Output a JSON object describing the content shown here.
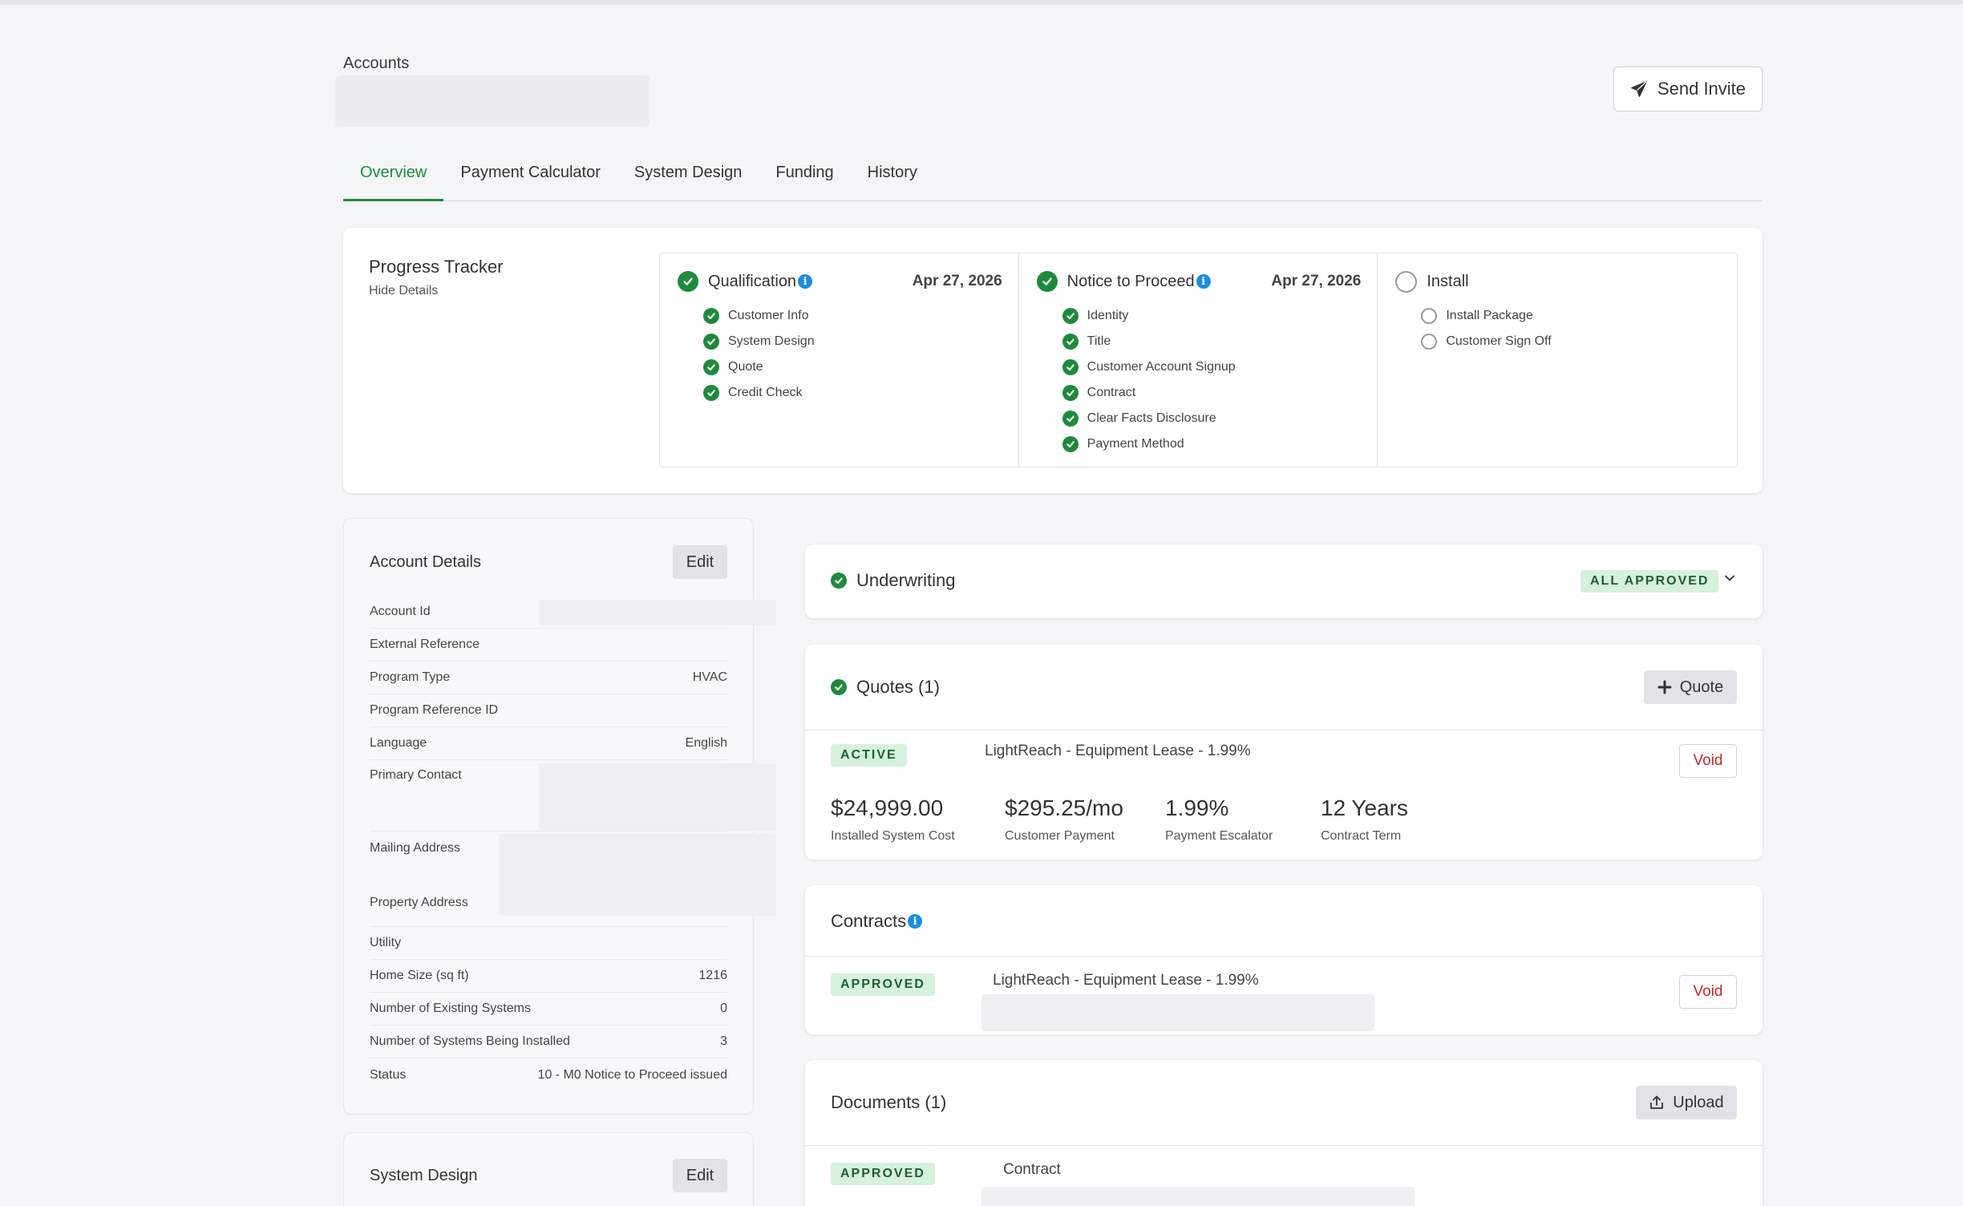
{
  "header": {
    "breadcrumb": "Accounts",
    "send_invite_label": "Send Invite"
  },
  "tabs": [
    {
      "label": "Overview",
      "active": true
    },
    {
      "label": "Payment Calculator",
      "active": false
    },
    {
      "label": "System Design",
      "active": false
    },
    {
      "label": "Funding",
      "active": false
    },
    {
      "label": "History",
      "active": false
    }
  ],
  "progress_tracker": {
    "title": "Progress Tracker",
    "toggle_label": "Hide Details",
    "stages": [
      {
        "label": "Qualification",
        "date": "Apr 27, 2026",
        "complete": true,
        "info": true,
        "items": [
          "Customer Info",
          "System Design",
          "Quote",
          "Credit Check"
        ]
      },
      {
        "label": "Notice to Proceed",
        "date": "Apr 27, 2026",
        "complete": true,
        "info": true,
        "items": [
          "Identity",
          "Title",
          "Customer Account Signup",
          "Contract",
          "Clear Facts Disclosure",
          "Payment Method"
        ]
      },
      {
        "label": "Install",
        "date": "",
        "complete": false,
        "info": false,
        "items": [
          "Install Package",
          "Customer Sign Off"
        ]
      }
    ]
  },
  "account_details": {
    "title": "Account Details",
    "edit_label": "Edit",
    "rows": [
      {
        "label": "Account Id",
        "value": ""
      },
      {
        "label": "External Reference",
        "value": ""
      },
      {
        "label": "Program Type",
        "value": "HVAC"
      },
      {
        "label": "Program Reference ID",
        "value": ""
      },
      {
        "label": "Language",
        "value": "English"
      },
      {
        "label": "Primary Contact",
        "value": ""
      },
      {
        "label": "Mailing Address",
        "value": ""
      },
      {
        "label": "Property Address",
        "value": ""
      },
      {
        "label": "Utility",
        "value": ""
      },
      {
        "label": "Home Size (sq ft)",
        "value": "1216"
      },
      {
        "label": "Number of Existing Systems",
        "value": "0"
      },
      {
        "label": "Number of Systems Being Installed",
        "value": "3"
      },
      {
        "label": "Status",
        "value": "10 - M0 Notice to Proceed issued"
      }
    ]
  },
  "system_design": {
    "title": "System Design",
    "edit_label": "Edit"
  },
  "underwriting": {
    "title": "Underwriting",
    "badge": "ALL APPROVED"
  },
  "quotes": {
    "title": "Quotes (1)",
    "add_label": "Quote",
    "item": {
      "status": "ACTIVE",
      "name": "LightReach - Equipment Lease - 1.99%",
      "void_label": "Void",
      "metrics": [
        {
          "value": "$24,999.00",
          "label": "Installed System Cost"
        },
        {
          "value": "$295.25/mo",
          "label": "Customer Payment"
        },
        {
          "value": "1.99%",
          "label": "Payment Escalator"
        },
        {
          "value": "12 Years",
          "label": "Contract Term"
        }
      ]
    }
  },
  "contracts": {
    "title": "Contracts",
    "item": {
      "status": "APPROVED",
      "name": "LightReach - Equipment Lease - 1.99%",
      "void_label": "Void"
    }
  },
  "documents": {
    "title": "Documents (1)",
    "upload_label": "Upload",
    "item": {
      "status": "APPROVED",
      "name": "Contract"
    }
  },
  "colors": {
    "accent_green": "#1e8a3c",
    "badge_green_bg": "#d6f1dc",
    "void_red": "#c0282d",
    "info_blue": "#1a8de0"
  }
}
